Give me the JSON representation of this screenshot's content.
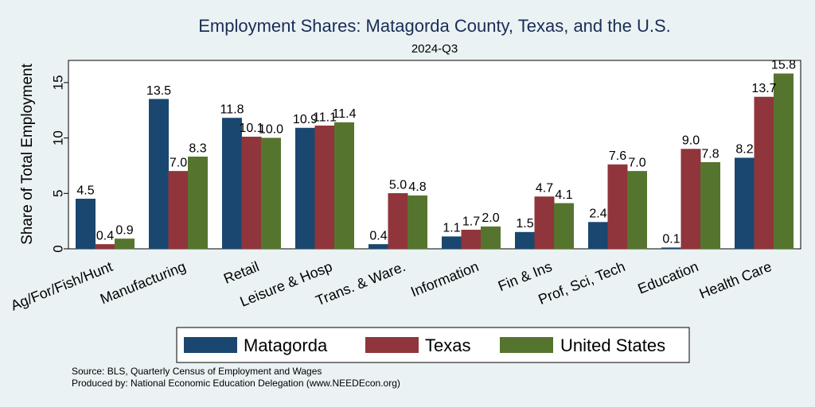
{
  "chart_data": {
    "type": "bar",
    "title": "Employment Shares: Matagorda County, Texas, and the U.S.",
    "subtitle": "2024-Q3",
    "ylabel": "Share of Total Employment",
    "xlabel": "",
    "ylim": [
      0,
      17
    ],
    "yticks": [
      0,
      5,
      10,
      15
    ],
    "grid": false,
    "legend_position": "bottom",
    "categories": [
      "Ag/For/Fish/Hunt",
      "Manufacturing",
      "Retail",
      "Leisure & Hosp",
      "Trans. & Ware.",
      "Information",
      "Fin & Ins",
      "Prof, Sci, Tech",
      "Education",
      "Health Care"
    ],
    "series": [
      {
        "name": "Matagorda",
        "color": "#1a476f",
        "values": [
          4.5,
          13.5,
          11.8,
          10.9,
          0.4,
          1.1,
          1.5,
          2.4,
          0.1,
          8.2
        ]
      },
      {
        "name": "Texas",
        "color": "#90353b",
        "values": [
          0.4,
          7.0,
          10.1,
          11.1,
          5.0,
          1.7,
          4.7,
          7.6,
          9.0,
          13.7
        ]
      },
      {
        "name": "United States",
        "color": "#55752f",
        "values": [
          0.9,
          8.3,
          10.0,
          11.4,
          4.8,
          2.0,
          4.1,
          7.0,
          7.8,
          15.8
        ]
      }
    ],
    "notes": [
      "Source: BLS, Quarterly Census of Employment and Wages",
      "Produced by: National Economic Education Delegation (www.NEEDEcon.org)"
    ]
  }
}
